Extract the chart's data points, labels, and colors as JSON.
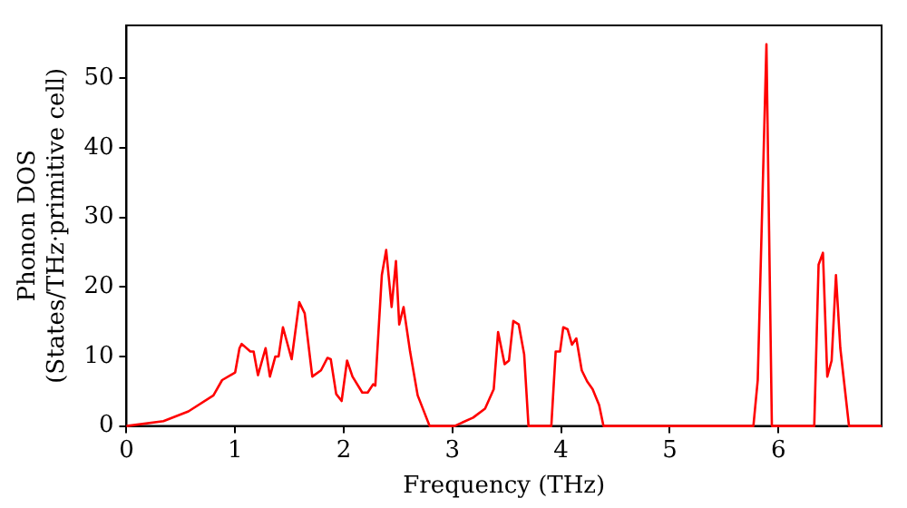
{
  "chart_data": {
    "type": "line",
    "xlabel": "Frequency (THz)",
    "ylabel": "Phonon DOS\n(States/THz·primitive cell)",
    "xlim": [
      0,
      6.95
    ],
    "ylim": [
      0,
      57.6
    ],
    "xticks": [
      0,
      1,
      2,
      3,
      4,
      5,
      6
    ],
    "yticks": [
      0,
      10,
      20,
      30,
      40,
      50
    ],
    "grid": false,
    "legend": false,
    "marker": "none",
    "line_style": "solid",
    "series": [
      {
        "color": "#ff0000",
        "x": [
          0,
          0.34,
          0.57,
          0.8,
          0.88,
          1.0,
          1.04,
          1.06,
          1.14,
          1.17,
          1.21,
          1.28,
          1.32,
          1.37,
          1.4,
          1.44,
          1.52,
          1.59,
          1.64,
          1.71,
          1.79,
          1.85,
          1.88,
          1.93,
          1.98,
          2.03,
          2.08,
          2.17,
          2.22,
          2.27,
          2.29,
          2.35,
          2.39,
          2.44,
          2.48,
          2.51,
          2.55,
          2.61,
          2.68,
          2.79,
          3.02,
          3.19,
          3.3,
          3.38,
          3.42,
          3.48,
          3.52,
          3.56,
          3.61,
          3.66,
          3.7,
          3.91,
          3.95,
          3.99,
          4.02,
          4.06,
          4.1,
          4.14,
          4.19,
          4.24,
          4.29,
          4.35,
          4.39,
          5.77,
          5.81,
          5.89,
          5.94,
          6.33,
          6.37,
          6.41,
          6.45,
          6.49,
          6.53,
          6.57,
          6.65,
          6.95
        ],
        "values": [
          0,
          0.7,
          2.1,
          4.4,
          6.6,
          7.7,
          11.2,
          11.8,
          10.7,
          10.7,
          7.3,
          11.2,
          7.1,
          10,
          10,
          14.2,
          9.6,
          17.8,
          16.2,
          7.1,
          8.0,
          9.8,
          9.6,
          4.6,
          3.6,
          9.4,
          7.1,
          4.8,
          4.8,
          6.0,
          5.8,
          21.7,
          25.3,
          17.1,
          23.7,
          14.6,
          17.1,
          10.7,
          4.4,
          0,
          0,
          1.2,
          2.5,
          5.3,
          13.5,
          8.9,
          9.4,
          15.1,
          14.6,
          10.3,
          0,
          0,
          10.7,
          10.7,
          14.2,
          13.9,
          11.7,
          12.6,
          8.0,
          6.4,
          5.3,
          3.0,
          0,
          0,
          6.6,
          54.9,
          0,
          0,
          23.2,
          24.9,
          7.1,
          9.4,
          21.7,
          11.2,
          0,
          0
        ]
      }
    ]
  }
}
